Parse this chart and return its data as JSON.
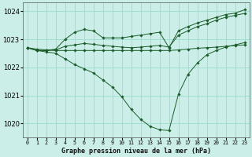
{
  "bg_color": "#cceee8",
  "grid_color": "#99ddcc",
  "line_color": "#1a5c2a",
  "marker_color": "#1a5c2a",
  "xlabel": "Graphe pression niveau de la mer (hPa)",
  "ylim": [
    1019.5,
    1024.3
  ],
  "xlim": [
    -0.5,
    23.5
  ],
  "yticks": [
    1020,
    1021,
    1022,
    1023,
    1024
  ],
  "series": [
    {
      "x": [
        0,
        1,
        2,
        3,
        4,
        5,
        6,
        7,
        8,
        9,
        10,
        11,
        12,
        13,
        14,
        15,
        16,
        17,
        18,
        19,
        20,
        21,
        22,
        23
      ],
      "y": [
        1022.7,
        1022.6,
        1022.6,
        1022.65,
        1023.0,
        1023.25,
        1023.35,
        1023.3,
        1023.05,
        1023.05,
        1023.05,
        1023.1,
        1023.15,
        1023.2,
        1023.25,
        1022.7,
        1023.3,
        1023.45,
        1023.58,
        1023.68,
        1023.78,
        1023.88,
        1023.93,
        1024.05
      ]
    },
    {
      "x": [
        0,
        1,
        2,
        3,
        4,
        5,
        6,
        7,
        8,
        9,
        10,
        11,
        12,
        13,
        14,
        15,
        16,
        17,
        18,
        19,
        20,
        21,
        22,
        23
      ],
      "y": [
        1022.7,
        1022.6,
        1022.6,
        1022.62,
        1022.75,
        1022.8,
        1022.85,
        1022.82,
        1022.78,
        1022.75,
        1022.72,
        1022.7,
        1022.72,
        1022.75,
        1022.78,
        1022.72,
        1023.15,
        1023.3,
        1023.45,
        1023.55,
        1023.68,
        1023.78,
        1023.85,
        1023.92
      ]
    },
    {
      "x": [
        0,
        1,
        2,
        3,
        4,
        5,
        6,
        7,
        8,
        9,
        10,
        11,
        12,
        13,
        14,
        15,
        16,
        17,
        18,
        19,
        20,
        21,
        22,
        23
      ],
      "y": [
        1022.7,
        1022.65,
        1022.62,
        1022.6,
        1022.6,
        1022.6,
        1022.6,
        1022.6,
        1022.6,
        1022.6,
        1022.6,
        1022.6,
        1022.6,
        1022.6,
        1022.6,
        1022.6,
        1022.62,
        1022.65,
        1022.68,
        1022.7,
        1022.72,
        1022.75,
        1022.78,
        1022.8
      ]
    },
    {
      "x": [
        0,
        1,
        2,
        3,
        4,
        5,
        6,
        7,
        8,
        9,
        10,
        11,
        12,
        13,
        14,
        15,
        16,
        17,
        18,
        19,
        20,
        21,
        22,
        23
      ],
      "y": [
        1022.7,
        1022.6,
        1022.55,
        1022.5,
        1022.3,
        1022.1,
        1021.95,
        1021.8,
        1021.55,
        1021.3,
        1020.95,
        1020.5,
        1020.15,
        1019.9,
        1019.78,
        1019.75,
        1021.05,
        1021.75,
        1022.15,
        1022.45,
        1022.6,
        1022.72,
        1022.8,
        1022.88
      ]
    }
  ]
}
